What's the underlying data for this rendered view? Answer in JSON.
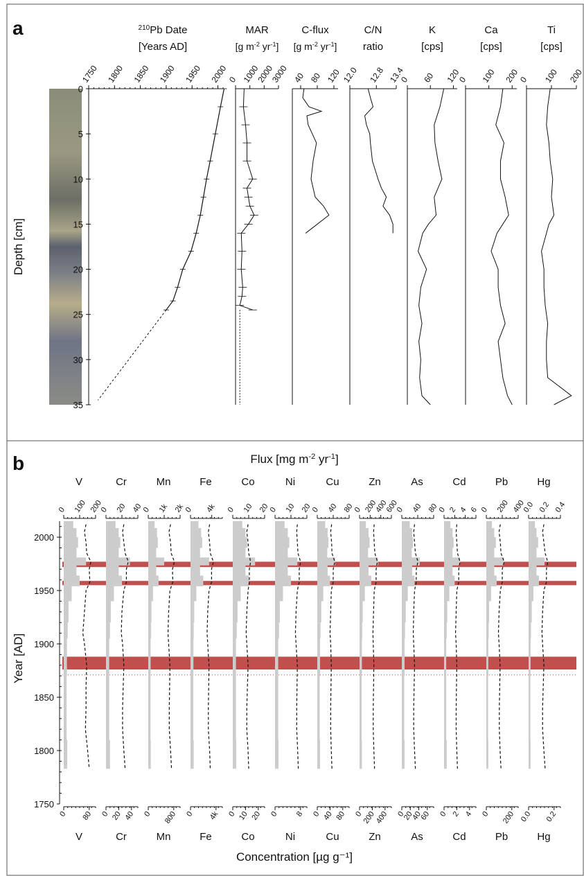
{
  "panel_a": {
    "label": "a",
    "depth_axis": {
      "label": "Depth [cm]",
      "ticks": [
        "0",
        "5",
        "10",
        "15",
        "20",
        "25",
        "30",
        "35"
      ],
      "range": [
        0,
        35
      ]
    },
    "columns": {
      "pb210": {
        "title_sup": "210",
        "title": "Pb Date",
        "unit": "[Years AD]",
        "ticks": [
          "1750",
          "1800",
          "1850",
          "1900",
          "1950",
          "2000"
        ],
        "range": [
          1750,
          2010
        ]
      },
      "mar": {
        "title": "MAR",
        "unit_parts": [
          "[g m",
          "-2",
          " yr",
          "-1",
          "]"
        ],
        "ticks": [
          "0",
          "1000",
          "2000",
          "3000"
        ],
        "range": [
          0,
          3000
        ]
      },
      "cflux": {
        "title": "C-flux",
        "unit_parts": [
          "[g m",
          "-2",
          " yr",
          "-1",
          "]"
        ],
        "ticks": [
          "40",
          "80",
          "120"
        ],
        "range": [
          20,
          130
        ]
      },
      "cn": {
        "title": "C/N",
        "unit": "ratio",
        "ticks": [
          "12.0",
          "12.8",
          "13.4"
        ],
        "range": [
          12.0,
          13.4
        ]
      },
      "k": {
        "title": "K",
        "unit": "[cps]",
        "ticks": [
          "0",
          "60",
          "120"
        ],
        "range": [
          0,
          130
        ]
      },
      "ca": {
        "title": "Ca",
        "unit": "[cps]",
        "ticks": [
          "0",
          "100",
          "200"
        ],
        "range": [
          0,
          220
        ]
      },
      "ti": {
        "title": "Ti",
        "unit": "[cps]",
        "ticks": [
          "0",
          "100",
          "200"
        ],
        "range": [
          0,
          200
        ]
      }
    }
  },
  "panel_b": {
    "label": "b",
    "top_title_parts": [
      "Flux [mg m",
      "-2",
      " yr",
      "-1",
      "]"
    ],
    "bottom_title": "Concentration [µg g⁻¹]",
    "year_axis": {
      "label": "Year [AD]",
      "ticks": [
        "1750",
        "1800",
        "1850",
        "1900",
        "1950",
        "2000"
      ],
      "range": [
        1750,
        2015
      ]
    },
    "elements": [
      {
        "name": "V",
        "flux_ticks": [
          "0",
          "100",
          "200"
        ],
        "conc_ticks": [
          "0",
          "80"
        ]
      },
      {
        "name": "Cr",
        "flux_ticks": [
          "0",
          "20",
          "40"
        ],
        "conc_ticks": [
          "0",
          "20",
          "40"
        ]
      },
      {
        "name": "Mn",
        "flux_ticks": [
          "0",
          "1k",
          "2k"
        ],
        "conc_ticks": [
          "0",
          "800"
        ]
      },
      {
        "name": "Fe",
        "flux_ticks": [
          "0",
          "4k"
        ],
        "conc_ticks": [
          "0",
          "4k"
        ]
      },
      {
        "name": "Co",
        "flux_ticks": [
          "0",
          "10",
          "20"
        ],
        "conc_ticks": [
          "0",
          "10",
          "20"
        ]
      },
      {
        "name": "Ni",
        "flux_ticks": [
          "0",
          "10",
          "20"
        ],
        "conc_ticks": [
          "0",
          "8"
        ]
      },
      {
        "name": "Cu",
        "flux_ticks": [
          "0",
          "40",
          "80"
        ],
        "conc_ticks": [
          "0",
          "40",
          "80"
        ]
      },
      {
        "name": "Zn",
        "flux_ticks": [
          "0",
          "200",
          "400",
          "600"
        ],
        "conc_ticks": [
          "0",
          "200",
          "400"
        ]
      },
      {
        "name": "As",
        "flux_ticks": [
          "0",
          "40",
          "80"
        ],
        "conc_ticks": [
          "0",
          "20",
          "40",
          "60"
        ]
      },
      {
        "name": "Cd",
        "flux_ticks": [
          "0",
          "2",
          "4",
          "6"
        ],
        "conc_ticks": [
          "0",
          "2",
          "4"
        ]
      },
      {
        "name": "Pb",
        "flux_ticks": [
          "0",
          "200",
          "400"
        ],
        "conc_ticks": [
          "0",
          "200"
        ]
      },
      {
        "name": "Hg",
        "flux_ticks": [
          "0.0",
          "0.2",
          "0.4"
        ],
        "conc_ticks": [
          "0.0",
          "0.2"
        ]
      }
    ],
    "highlight_bands_years": [
      [
        1955,
        1959
      ],
      [
        1972,
        1977
      ],
      [
        1876,
        1888
      ]
    ],
    "dotted_line_year": 1871,
    "colors": {
      "band": "#c0504d",
      "flux_bars": "#cccccc",
      "line": "#111111"
    }
  },
  "chart_data": [
    {
      "type": "line",
      "panel": "a",
      "title": "",
      "ylabel": "Depth [cm]",
      "ylim": [
        0,
        35
      ],
      "y_inverted": true,
      "series": [
        {
          "name": "Pb Date",
          "x_unit": "Years AD",
          "y": [
            0,
            2,
            5,
            8,
            10,
            12,
            14,
            16,
            18,
            20,
            22,
            23.5,
            24.5
          ],
          "x": [
            2012,
            2005,
            1995,
            1985,
            1978,
            1972,
            1966,
            1958,
            1948,
            1932,
            1922,
            1913,
            1900
          ],
          "extrapolated": {
            "y": [
              24.5,
              34.5
            ],
            "x": [
              1900,
              1768
            ]
          }
        },
        {
          "name": "MAR",
          "y": [
            0,
            2,
            4,
            6,
            8,
            10,
            11,
            12,
            13,
            14,
            15,
            16,
            18,
            20,
            22,
            23,
            24,
            24.5
          ],
          "x": [
            600,
            550,
            700,
            800,
            800,
            1200,
            800,
            900,
            1000,
            1300,
            900,
            400,
            450,
            400,
            500,
            450,
            300,
            1200
          ]
        },
        {
          "name": "C-flux",
          "y": [
            0,
            1,
            2,
            2.5,
            3,
            4,
            6,
            8,
            10,
            12,
            13,
            14,
            15,
            16
          ],
          "x": [
            48,
            45,
            60,
            90,
            55,
            58,
            78,
            70,
            65,
            75,
            95,
            108,
            80,
            52
          ]
        },
        {
          "name": "C/N",
          "y": [
            0,
            1,
            2,
            3,
            4,
            5,
            6,
            8,
            10,
            11,
            12,
            13,
            14,
            15,
            16
          ],
          "x": [
            12.55,
            12.62,
            12.7,
            12.45,
            12.5,
            12.6,
            12.62,
            12.68,
            12.85,
            12.95,
            13.1,
            13.0,
            13.2,
            13.3,
            13.3
          ]
        },
        {
          "name": "K",
          "y": [
            0,
            2,
            4,
            6,
            8,
            10,
            12,
            14,
            15,
            16,
            18,
            20,
            22,
            24,
            26,
            28,
            30,
            32,
            34,
            35
          ],
          "x": [
            95,
            85,
            70,
            72,
            80,
            90,
            70,
            75,
            55,
            40,
            28,
            50,
            35,
            30,
            38,
            30,
            35,
            32,
            38,
            60
          ]
        },
        {
          "name": "Ca",
          "y": [
            0,
            2,
            4,
            6,
            8,
            10,
            12,
            14,
            15,
            16,
            18,
            20,
            22,
            24,
            26,
            28,
            30,
            32,
            34,
            35
          ],
          "x": [
            160,
            150,
            130,
            165,
            150,
            150,
            170,
            185,
            160,
            135,
            110,
            140,
            140,
            150,
            170,
            140,
            150,
            160,
            180,
            200
          ]
        },
        {
          "name": "Ti",
          "y": [
            0,
            2,
            4,
            6,
            8,
            10,
            12,
            14,
            15,
            16,
            18,
            20,
            22,
            24,
            26,
            28,
            30,
            32,
            34,
            35
          ],
          "x": [
            95,
            85,
            80,
            90,
            95,
            105,
            100,
            110,
            90,
            80,
            60,
            70,
            70,
            75,
            85,
            80,
            80,
            85,
            180,
            110
          ]
        }
      ]
    },
    {
      "type": "area",
      "panel": "b",
      "xlabel_top": "Flux",
      "xlabel_bottom": "Concentration",
      "ylabel": "Year [AD]",
      "ylim": [
        1750,
        2015
      ],
      "years": [
        2012,
        2005,
        1995,
        1985,
        1977,
        1970,
        1958,
        1950,
        1930,
        1910,
        1900,
        1880,
        1860,
        1840,
        1820,
        1800,
        1783
      ],
      "series": [
        {
          "name": "V",
          "flux": [
            60,
            80,
            90,
            80,
            140,
            80,
            100,
            50,
            30,
            25,
            20,
            20,
            18,
            18,
            18,
            22,
            22
          ],
          "conc": [
            70,
            65,
            70,
            72,
            85,
            80,
            82,
            70,
            65,
            60,
            65,
            72,
            70,
            70,
            68,
            75,
            80
          ]
        },
        {
          "name": "Cr",
          "flux": [
            12,
            16,
            18,
            16,
            30,
            16,
            20,
            10,
            6,
            5,
            4,
            4,
            4,
            4,
            4,
            5,
            5
          ],
          "conc": [
            28,
            26,
            28,
            30,
            35,
            32,
            32,
            28,
            25,
            24,
            26,
            28,
            27,
            26,
            26,
            28,
            30
          ]
        },
        {
          "name": "Mn",
          "flux": [
            400,
            550,
            600,
            500,
            1000,
            500,
            650,
            300,
            200,
            180,
            150,
            150,
            140,
            140,
            140,
            160,
            160
          ],
          "conc": [
            700,
            650,
            700,
            720,
            820,
            760,
            770,
            680,
            640,
            620,
            640,
            680,
            670,
            660,
            660,
            700,
            730
          ]
        },
        {
          "name": "Fe",
          "flux": [
            1500,
            2000,
            2200,
            1800,
            3500,
            1800,
            2400,
            1100,
            700,
            600,
            550,
            550,
            520,
            520,
            520,
            600,
            600
          ],
          "conc": [
            3000,
            2800,
            3000,
            3100,
            3600,
            3300,
            3300,
            2900,
            2700,
            2600,
            2700,
            2900,
            2850,
            2800,
            2800,
            3000,
            3100
          ]
        },
        {
          "name": "Co",
          "flux": [
            6,
            8,
            9,
            8,
            14,
            8,
            10,
            5,
            3,
            2.5,
            2,
            2,
            2,
            2,
            2,
            2.2,
            2.2
          ],
          "conc": [
            12,
            11,
            12,
            12.5,
            14,
            13,
            13,
            12,
            11,
            10.5,
            11,
            12,
            11.5,
            11,
            11,
            12,
            12.5
          ]
        },
        {
          "name": "Ni",
          "flux": [
            6,
            8,
            9,
            8,
            14,
            8,
            10,
            5,
            3,
            2.5,
            2,
            2,
            2,
            2,
            2,
            2.2,
            2.2
          ],
          "conc": [
            7,
            6.8,
            7,
            7.2,
            8,
            7.6,
            7.6,
            7,
            6.6,
            6.4,
            6.6,
            7,
            6.9,
            6.8,
            6.8,
            7.1,
            7.3
          ]
        },
        {
          "name": "Cu",
          "flux": [
            20,
            26,
            28,
            25,
            45,
            26,
            32,
            15,
            10,
            8,
            7,
            7,
            6,
            6,
            6,
            7,
            7
          ],
          "conc": [
            45,
            42,
            45,
            46,
            55,
            50,
            50,
            44,
            42,
            40,
            42,
            44,
            43,
            42,
            42,
            44,
            46
          ]
        },
        {
          "name": "Zn",
          "flux": [
            120,
            170,
            190,
            160,
            350,
            170,
            220,
            100,
            60,
            50,
            45,
            45,
            40,
            40,
            40,
            45,
            45
          ],
          "conc": [
            230,
            220,
            230,
            240,
            280,
            260,
            260,
            230,
            220,
            210,
            215,
            225,
            220,
            215,
            215,
            225,
            235
          ]
        },
        {
          "name": "As",
          "flux": [
            20,
            26,
            28,
            25,
            45,
            26,
            32,
            15,
            10,
            8,
            7,
            7,
            6,
            6,
            6,
            7,
            7
          ],
          "conc": [
            30,
            28,
            30,
            32,
            38,
            34,
            34,
            30,
            28,
            27,
            28,
            30,
            29,
            28,
            28,
            30,
            32
          ]
        },
        {
          "name": "Cd",
          "flux": [
            1.2,
            1.6,
            1.8,
            1.6,
            3,
            1.6,
            2,
            1,
            0.6,
            0.5,
            0.4,
            0.4,
            0.4,
            0.4,
            0.4,
            0.5,
            0.5
          ],
          "conc": [
            2.0,
            1.9,
            2.0,
            2.1,
            2.5,
            2.3,
            2.3,
            2.0,
            1.9,
            1.8,
            1.9,
            2.0,
            1.95,
            1.9,
            1.9,
            2.0,
            2.1
          ]
        },
        {
          "name": "Pb",
          "flux": [
            70,
            100,
            120,
            100,
            220,
            100,
            130,
            60,
            35,
            30,
            25,
            25,
            22,
            22,
            22,
            25,
            25
          ],
          "conc": [
            110,
            100,
            110,
            115,
            140,
            125,
            125,
            110,
            100,
            95,
            100,
            108,
            105,
            102,
            102,
            108,
            115
          ]
        },
        {
          "name": "Hg",
          "flux": [
            0.08,
            0.1,
            0.12,
            0.1,
            0.2,
            0.1,
            0.13,
            0.06,
            0.04,
            0.03,
            0.025,
            0.025,
            0.022,
            0.022,
            0.022,
            0.025,
            0.025
          ],
          "conc": [
            0.12,
            0.11,
            0.12,
            0.13,
            0.15,
            0.14,
            0.14,
            0.12,
            0.11,
            0.105,
            0.11,
            0.12,
            0.115,
            0.11,
            0.11,
            0.12,
            0.13
          ]
        }
      ]
    }
  ]
}
